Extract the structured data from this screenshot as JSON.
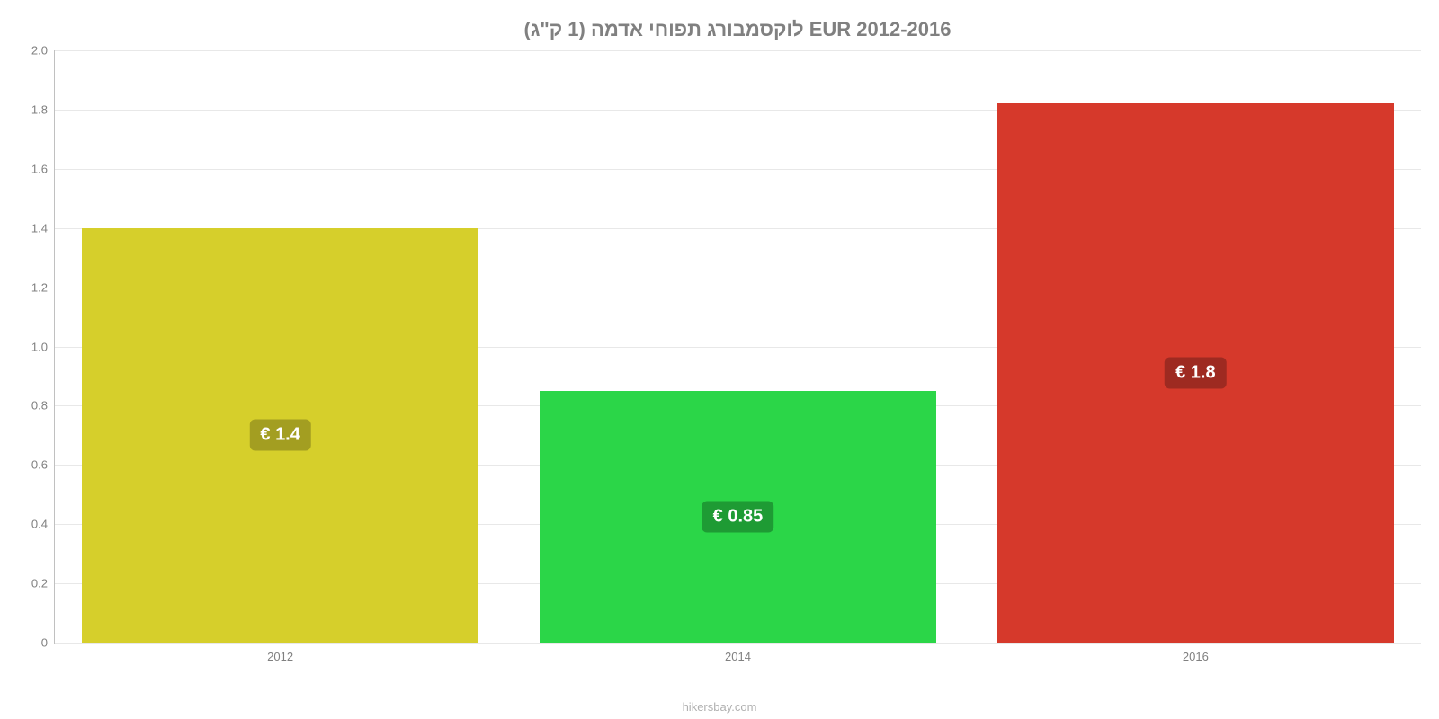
{
  "chart": {
    "type": "bar",
    "title": "לוקסמבורג תפוחי אדמה (1 ק\"ג) EUR 2012-2016",
    "title_fontsize": 22,
    "title_color": "#808080",
    "background_color": "#ffffff",
    "grid_color": "#e8e8e8",
    "axis_color": "#c0c0c0",
    "ylim": [
      0,
      2.0
    ],
    "yticks": [
      0,
      0.2,
      0.4,
      0.6,
      0.8,
      1.0,
      1.2,
      1.4,
      1.6,
      1.8,
      2.0
    ],
    "ytick_labels": [
      "0",
      "0.2",
      "0.4",
      "0.6",
      "0.8",
      "1.0",
      "1.2",
      "1.4",
      "1.6",
      "1.8",
      "2.0"
    ],
    "ytick_fontsize": 13,
    "ytick_color": "#808080",
    "categories": [
      "2012",
      "2014",
      "2016"
    ],
    "values": [
      1.4,
      0.85,
      1.82
    ],
    "bar_labels": [
      "€ 1.4",
      "€ 0.85",
      "€ 1.8"
    ],
    "bar_colors": [
      "#d6cf2b",
      "#2bd648",
      "#d6392b"
    ],
    "bar_label_bg": [
      "#a39e21",
      "#1e9b34",
      "#9e2a21"
    ],
    "bar_label_text_color": "#ffffff",
    "bar_label_fontsize": 20,
    "bar_width_pct": 29,
    "bar_positions_pct": [
      2,
      35.5,
      69
    ],
    "footer": "hikersbay.com",
    "footer_color": "#b0b0b0",
    "footer_fontsize": 13
  }
}
